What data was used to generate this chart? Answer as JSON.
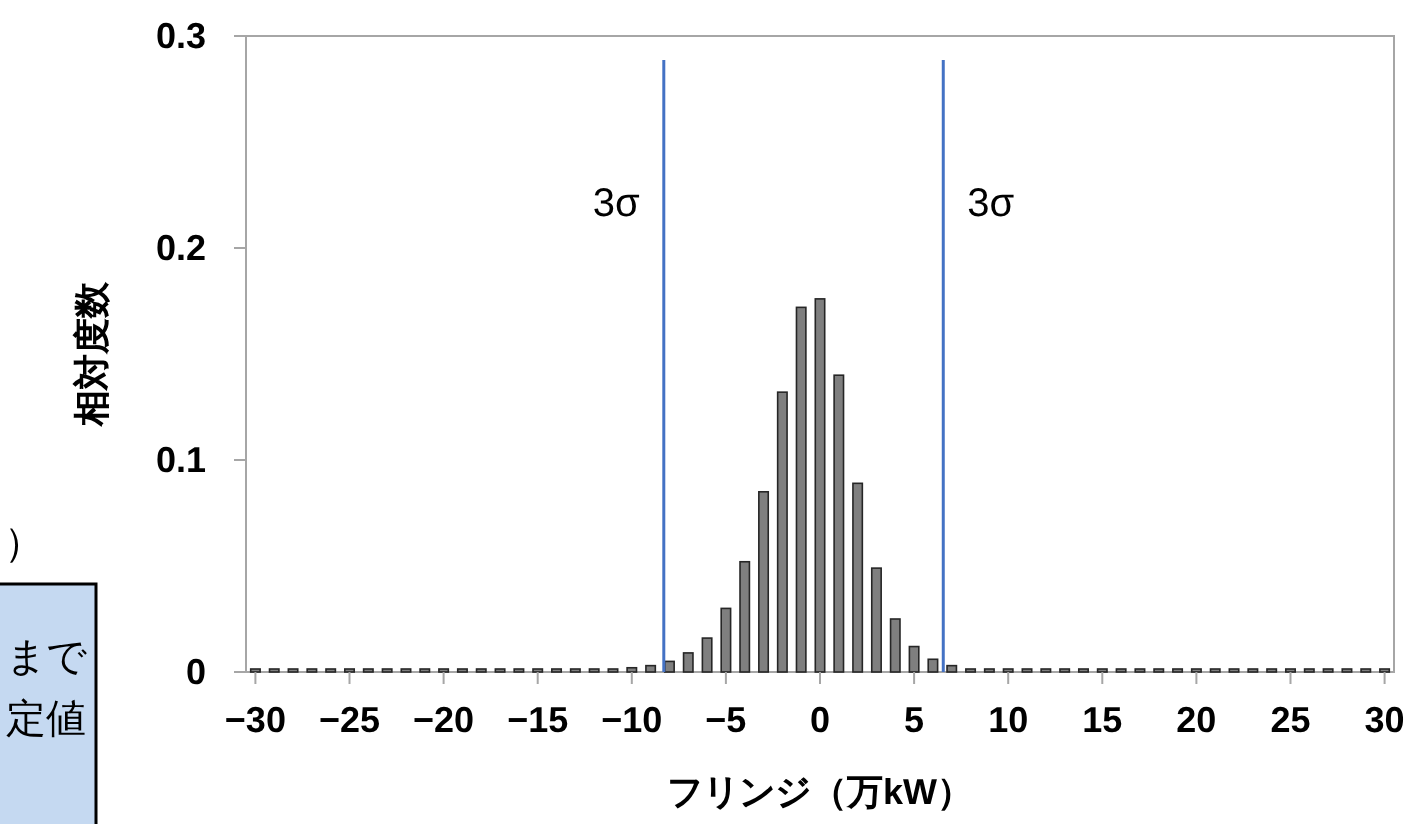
{
  "chart_data": {
    "type": "histogram",
    "xlabel": "フリンジ（万kW）",
    "ylabel": "相対度数",
    "bins": [
      -30.5,
      -29.5,
      -28.5,
      -27.5,
      -26.5,
      -25.5,
      -24.5,
      -23.5,
      -22.5,
      -21.5,
      -20.5,
      -19.5,
      -18.5,
      -17.5,
      -16.5,
      -15.5,
      -14.5,
      -13.5,
      -12.5,
      -11.5,
      -10.5,
      -9.5,
      -8.5,
      -7.5,
      -6.5,
      -5.5,
      -4.5,
      -3.5,
      -2.5,
      -1.5,
      -0.5,
      0.5,
      1.5,
      2.5,
      3.5,
      4.5,
      5.5,
      6.5,
      7.5,
      8.5,
      9.5,
      10.5,
      11.5,
      12.5,
      13.5,
      14.5,
      15.5,
      16.5,
      17.5,
      18.5,
      19.5,
      20.5,
      21.5,
      22.5,
      23.5,
      24.5,
      25.5,
      26.5,
      27.5,
      28.5,
      29.5,
      30.5
    ],
    "values": [
      0,
      0,
      0,
      0,
      0,
      0,
      0,
      0,
      0,
      0,
      0,
      0,
      0,
      0,
      0,
      0,
      0,
      0,
      0,
      0.001,
      0.002,
      0.003,
      0.005,
      0.009,
      0.016,
      0.03,
      0.052,
      0.085,
      0.132,
      0.172,
      0.176,
      0.14,
      0.089,
      0.049,
      0.025,
      0.012,
      0.006,
      0.003,
      0.001,
      0.001,
      0,
      0,
      0,
      0,
      0,
      0,
      0,
      0,
      0,
      0,
      0,
      0,
      0,
      0,
      0,
      0,
      0,
      0,
      0,
      0,
      0
    ],
    "color": "#7f7f7f",
    "xlim": [
      -30.5,
      30.5
    ],
    "xticks": [
      {
        "value": -30,
        "label": "−30"
      },
      {
        "value": -25,
        "label": "−25"
      },
      {
        "value": -20,
        "label": "−20"
      },
      {
        "value": -15,
        "label": "−15"
      },
      {
        "value": -10,
        "label": "−10"
      },
      {
        "value": -5,
        "label": "−5"
      },
      0,
      5,
      10,
      15,
      20,
      25,
      30
    ],
    "ylim": [
      0,
      0.3
    ],
    "yticks": [
      0,
      0.1,
      0.2,
      0.3
    ],
    "ref_lines": [
      {
        "axis": "x",
        "value": -8.3,
        "label": "3σ",
        "color": "#4472c4"
      },
      {
        "axis": "x",
        "value": 6.55,
        "label": "3σ",
        "color": "#4472c4"
      }
    ],
    "annotations": [
      "）",
      "まで",
      "定値"
    ],
    "grid": false
  }
}
